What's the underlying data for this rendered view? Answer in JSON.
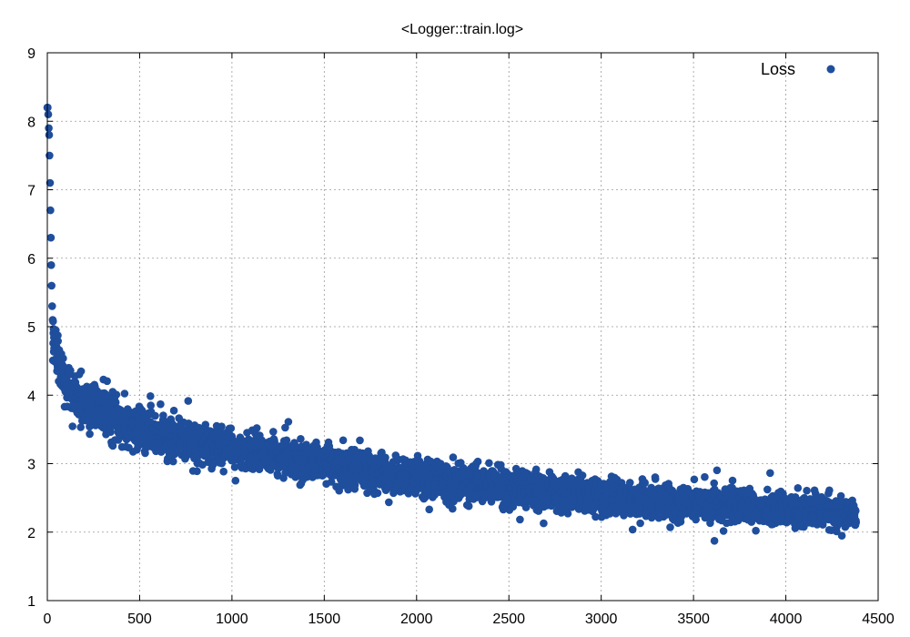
{
  "chart_data": {
    "type": "scatter",
    "title": "<Logger::train.log>",
    "xlabel": "",
    "ylabel": "",
    "xlim": [
      0,
      4500
    ],
    "ylim": [
      1,
      9
    ],
    "xticks": [
      0,
      500,
      1000,
      1500,
      2000,
      2500,
      3000,
      3500,
      4000,
      4500
    ],
    "yticks": [
      1,
      2,
      3,
      4,
      5,
      6,
      7,
      8,
      9
    ],
    "grid": true,
    "legend_position": "top-right",
    "series": [
      {
        "name": "Loss",
        "color": "#1f4e9c",
        "marker": "circle",
        "n_points": 4380,
        "x_range": [
          0,
          4380
        ],
        "initial_points": [
          [
            0,
            8.2
          ],
          [
            2,
            8.2
          ],
          [
            5,
            8.1
          ],
          [
            8,
            7.9
          ],
          [
            10,
            7.8
          ],
          [
            12,
            7.5
          ],
          [
            15,
            7.1
          ],
          [
            17,
            6.7
          ],
          [
            19,
            6.3
          ],
          [
            21,
            5.9
          ],
          [
            23,
            5.6
          ],
          [
            26,
            5.3
          ],
          [
            29,
            5.1
          ]
        ],
        "trend": [
          [
            30,
            4.9
          ],
          [
            50,
            4.6
          ],
          [
            100,
            4.15
          ],
          [
            150,
            3.95
          ],
          [
            200,
            3.88
          ],
          [
            300,
            3.75
          ],
          [
            400,
            3.62
          ],
          [
            500,
            3.52
          ],
          [
            700,
            3.38
          ],
          [
            1000,
            3.2
          ],
          [
            1500,
            3.0
          ],
          [
            2000,
            2.8
          ],
          [
            2500,
            2.64
          ],
          [
            3000,
            2.52
          ],
          [
            3500,
            2.42
          ],
          [
            4000,
            2.33
          ],
          [
            4380,
            2.28
          ]
        ],
        "spread": [
          [
            30,
            0.3
          ],
          [
            200,
            0.28
          ],
          [
            1000,
            0.25
          ],
          [
            2500,
            0.22
          ],
          [
            4380,
            0.2
          ]
        ]
      }
    ]
  }
}
